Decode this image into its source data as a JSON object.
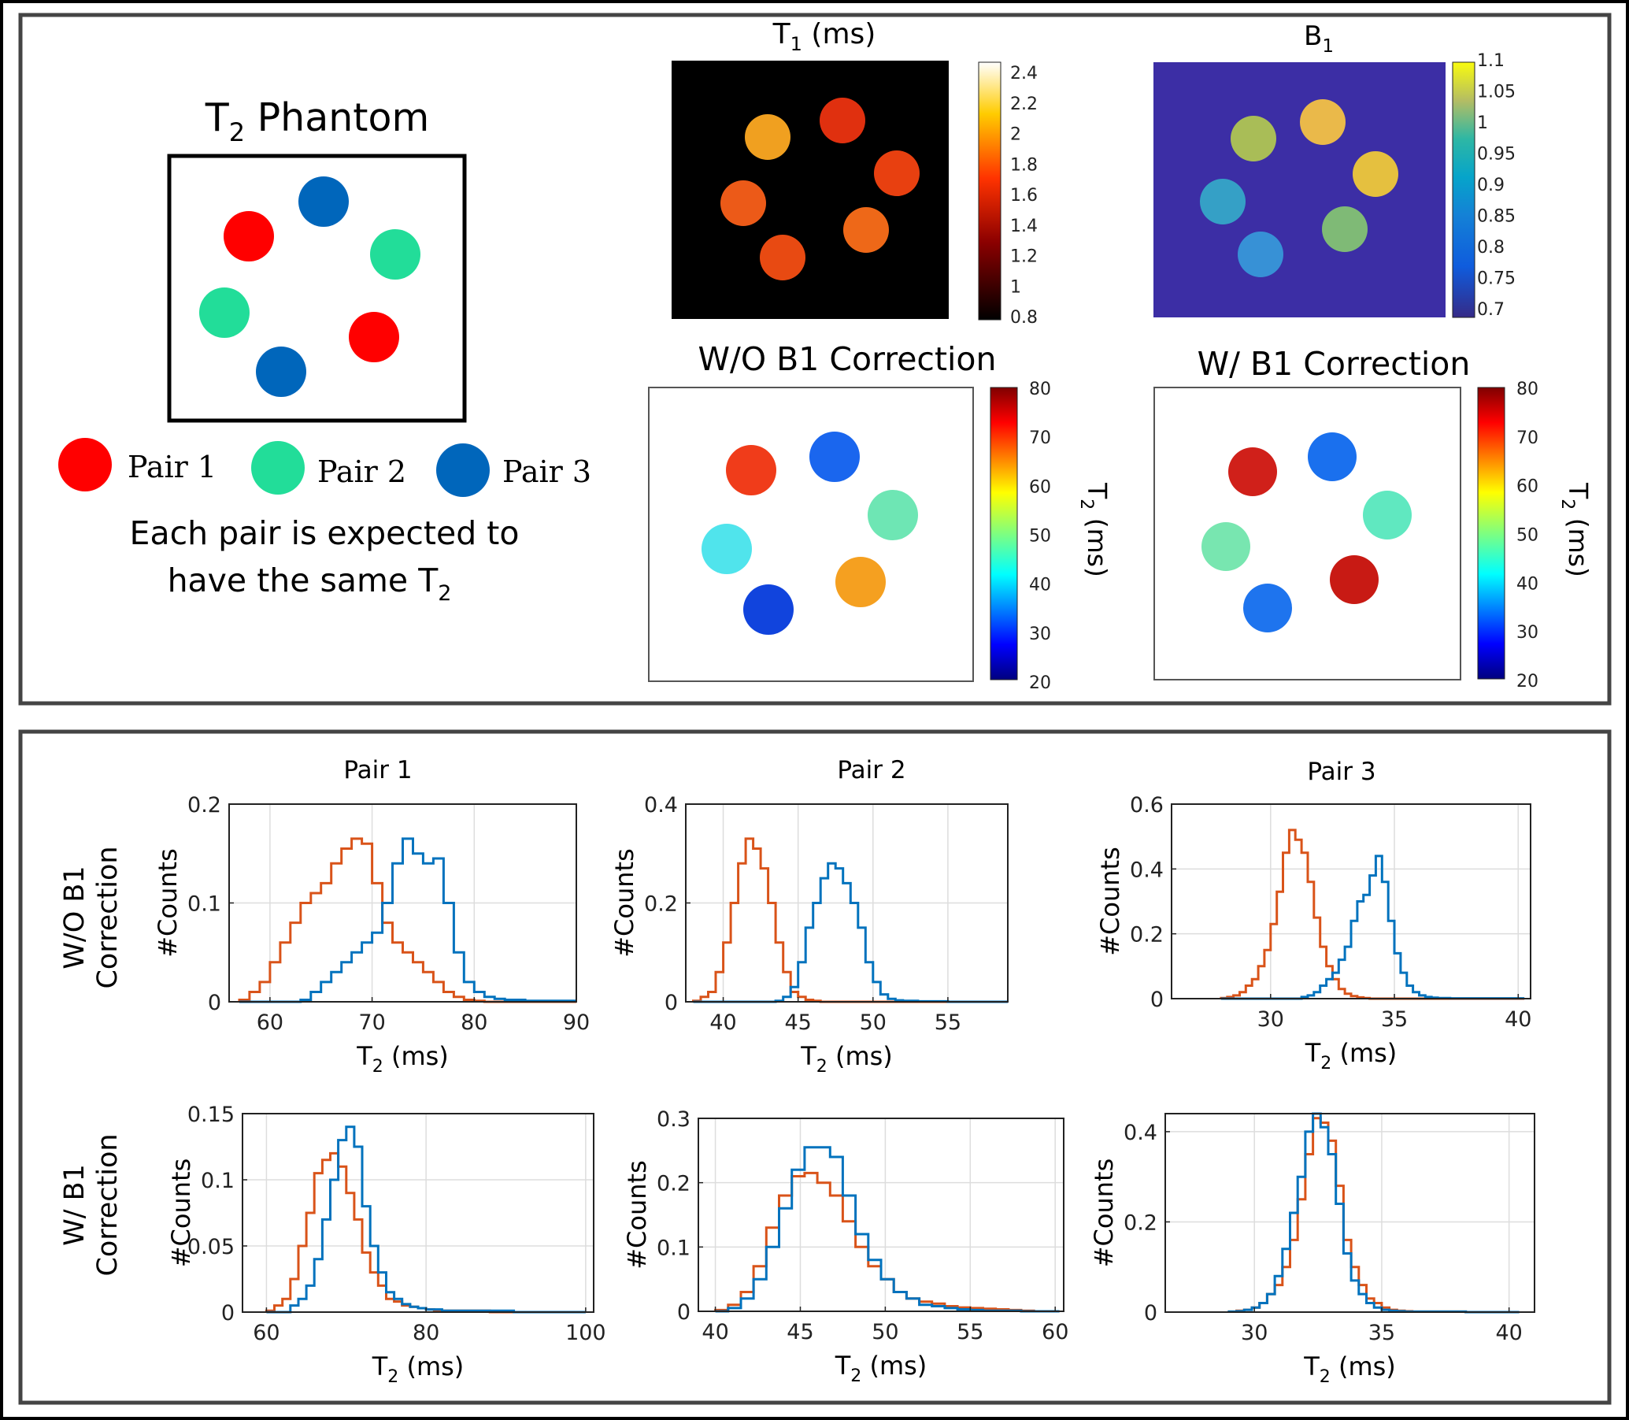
{
  "colors": {
    "pair1": "#ff0000",
    "pair2": "#22dd99",
    "pair3": "#0066bb",
    "series_a": "#d95319",
    "series_b": "#0072bd",
    "frame": "#444444"
  },
  "legend_panel": {
    "title_main": "T",
    "title_sub": "2",
    "title_rest": " Phantom",
    "pairs": [
      "Pair 1",
      "Pair 2",
      "Pair 3"
    ],
    "caption_line1": "Each pair is expected to",
    "caption_line2_main": "have the same T",
    "caption_line2_sub": "2"
  },
  "maps": {
    "t1": {
      "title_main": "T",
      "title_sub": "1",
      "title_rest": " (ms)",
      "colorbar_ticks": [
        "2.4",
        "2.2",
        "2",
        "1.8",
        "1.6",
        "1.4",
        "1.2",
        "1",
        "0.8"
      ]
    },
    "b1": {
      "title": "B",
      "title_sub": "1",
      "colorbar_ticks": [
        "1.1",
        "1.05",
        "1",
        "0.95",
        "0.9",
        "0.85",
        "0.8",
        "0.75",
        "0.7"
      ]
    },
    "t2_without": {
      "title": "W/O B1  Correction",
      "colorbar_ticks": [
        "80",
        "70",
        "60",
        "50",
        "40",
        "30",
        "20"
      ],
      "colorbar_label_main": "T",
      "colorbar_label_sub": "2",
      "colorbar_label_rest": " (ms)"
    },
    "t2_with": {
      "title": "W/ B1  Correction",
      "colorbar_ticks": [
        "80",
        "70",
        "60",
        "50",
        "40",
        "30",
        "20"
      ],
      "colorbar_label_main": "T",
      "colorbar_label_sub": "2",
      "colorbar_label_rest": " (ms)"
    }
  },
  "histograms": {
    "column_titles": [
      "Pair 1",
      "Pair 2",
      "Pair 3"
    ],
    "row_labels": [
      [
        "W/O B1",
        "Correction"
      ],
      [
        "W/ B1",
        "Correction"
      ]
    ],
    "ylabel": "#Counts",
    "xlabel_main": "T",
    "xlabel_sub": "2",
    "xlabel_rest": " (ms)"
  },
  "chart_data": [
    {
      "type": "histogram",
      "title": "Pair 1",
      "row": "W/O B1 Correction",
      "xlim": [
        56,
        90
      ],
      "ylim": [
        0,
        0.2
      ],
      "xticks": [
        60,
        70,
        80,
        90
      ],
      "yticks": [
        0,
        0.1,
        0.2
      ],
      "xlabel": "T2 (ms)",
      "ylabel": "#Counts",
      "series": [
        {
          "name": "red",
          "bin_start": 57,
          "bin_width": 1,
          "values": [
            0.002,
            0.01,
            0.02,
            0.04,
            0.06,
            0.08,
            0.1,
            0.11,
            0.12,
            0.14,
            0.155,
            0.165,
            0.16,
            0.12,
            0.08,
            0.06,
            0.05,
            0.04,
            0.03,
            0.02,
            0.01,
            0.005,
            0.002,
            0.001,
            0,
            0,
            0,
            0,
            0,
            0,
            0,
            0,
            0
          ]
        },
        {
          "name": "blue",
          "bin_start": 57,
          "bin_width": 1,
          "values": [
            0,
            0,
            0,
            0,
            0,
            0,
            0.002,
            0.01,
            0.02,
            0.03,
            0.04,
            0.05,
            0.06,
            0.07,
            0.1,
            0.14,
            0.165,
            0.15,
            0.14,
            0.145,
            0.1,
            0.05,
            0.02,
            0.01,
            0.005,
            0.003,
            0.002,
            0.002,
            0.001,
            0.001,
            0.001,
            0.001,
            0.001
          ]
        }
      ]
    },
    {
      "type": "histogram",
      "title": "Pair 2",
      "row": "W/O B1 Correction",
      "xlim": [
        37.5,
        59
      ],
      "ylim": [
        0,
        0.4
      ],
      "xticks": [
        40,
        45,
        50,
        55
      ],
      "yticks": [
        0,
        0.2,
        0.4
      ],
      "xlabel": "T2 (ms)",
      "ylabel": "#Counts",
      "series": [
        {
          "name": "red",
          "bin_start": 38,
          "bin_width": 0.5,
          "values": [
            0.002,
            0.01,
            0.02,
            0.06,
            0.12,
            0.2,
            0.28,
            0.33,
            0.31,
            0.27,
            0.2,
            0.12,
            0.06,
            0.02,
            0.01,
            0.004,
            0.002,
            0,
            0,
            0,
            0,
            0,
            0,
            0,
            0,
            0,
            0,
            0,
            0,
            0,
            0,
            0,
            0,
            0,
            0,
            0,
            0,
            0,
            0,
            0,
            0,
            0
          ]
        },
        {
          "name": "blue",
          "bin_start": 38,
          "bin_width": 0.5,
          "values": [
            0,
            0,
            0,
            0,
            0,
            0,
            0,
            0,
            0,
            0,
            0,
            0.002,
            0.01,
            0.03,
            0.08,
            0.15,
            0.2,
            0.25,
            0.28,
            0.27,
            0.24,
            0.2,
            0.15,
            0.08,
            0.04,
            0.015,
            0.006,
            0.003,
            0.002,
            0.002,
            0.001,
            0.001,
            0.001,
            0.001,
            0,
            0,
            0,
            0,
            0,
            0,
            0,
            0
          ]
        }
      ]
    },
    {
      "type": "histogram",
      "title": "Pair 3",
      "row": "W/O B1 Correction",
      "xlim": [
        26,
        40.5
      ],
      "ylim": [
        0,
        0.6
      ],
      "xticks": [
        30,
        35,
        40
      ],
      "yticks": [
        0,
        0.2,
        0.4,
        0.6
      ],
      "xlabel": "T2 (ms)",
      "ylabel": "#Counts",
      "series": [
        {
          "name": "red",
          "bin_start": 28,
          "bin_width": 0.25,
          "values": [
            0.002,
            0.005,
            0.01,
            0.02,
            0.04,
            0.06,
            0.1,
            0.15,
            0.23,
            0.33,
            0.45,
            0.52,
            0.49,
            0.45,
            0.36,
            0.25,
            0.16,
            0.1,
            0.06,
            0.03,
            0.015,
            0.008,
            0.004,
            0.002,
            0,
            0,
            0,
            0,
            0,
            0,
            0,
            0,
            0,
            0,
            0,
            0,
            0,
            0,
            0,
            0,
            0,
            0,
            0,
            0,
            0,
            0,
            0,
            0,
            0
          ]
        },
        {
          "name": "blue",
          "bin_start": 28,
          "bin_width": 0.25,
          "values": [
            0,
            0,
            0,
            0,
            0,
            0,
            0,
            0,
            0,
            0,
            0,
            0,
            0,
            0.005,
            0.01,
            0.02,
            0.04,
            0.06,
            0.08,
            0.12,
            0.16,
            0.24,
            0.3,
            0.32,
            0.38,
            0.44,
            0.36,
            0.24,
            0.14,
            0.08,
            0.04,
            0.02,
            0.01,
            0.005,
            0.003,
            0.002,
            0.002,
            0.001,
            0.001,
            0.001,
            0.001,
            0.001,
            0.001,
            0.001,
            0.001,
            0.001,
            0.001,
            0.001,
            0.001
          ]
        }
      ]
    },
    {
      "type": "histogram",
      "title": "Pair 1",
      "row": "W/ B1 Correction",
      "xlim": [
        57,
        101
      ],
      "ylim": [
        0,
        0.15
      ],
      "xticks": [
        60,
        80,
        100
      ],
      "yticks": [
        0,
        0.05,
        0.1,
        0.15
      ],
      "xlabel": "T2 (ms)",
      "ylabel": "#Counts",
      "series": [
        {
          "name": "red",
          "bin_start": 60,
          "bin_width": 1,
          "values": [
            0.001,
            0.005,
            0.01,
            0.025,
            0.05,
            0.075,
            0.105,
            0.115,
            0.12,
            0.11,
            0.09,
            0.07,
            0.045,
            0.03,
            0.02,
            0.01,
            0.008,
            0.005,
            0.004,
            0.003,
            0.002,
            0.001,
            0.001,
            0.001,
            0.001,
            0.001,
            0.001,
            0.001,
            0,
            0,
            0,
            0,
            0,
            0,
            0,
            0,
            0,
            0,
            0,
            0
          ]
        },
        {
          "name": "blue",
          "bin_start": 60,
          "bin_width": 1,
          "values": [
            0,
            0,
            0,
            0.005,
            0.01,
            0.02,
            0.04,
            0.07,
            0.1,
            0.13,
            0.14,
            0.125,
            0.08,
            0.05,
            0.03,
            0.015,
            0.01,
            0.006,
            0.004,
            0.003,
            0.002,
            0.002,
            0.001,
            0.001,
            0.001,
            0.001,
            0.001,
            0.001,
            0.001,
            0.001,
            0.001,
            0,
            0,
            0,
            0,
            0,
            0,
            0,
            0,
            0
          ]
        }
      ]
    },
    {
      "type": "histogram",
      "title": "Pair 2",
      "row": "W/ B1 Correction",
      "xlim": [
        39,
        60.5
      ],
      "ylim": [
        0,
        0.3
      ],
      "xticks": [
        40,
        45,
        50,
        55,
        60
      ],
      "yticks": [
        0,
        0.1,
        0.2,
        0.3
      ],
      "xlabel": "T2 (ms)",
      "ylabel": "#Counts",
      "series": [
        {
          "name": "red",
          "bin_start": 40,
          "bin_width": 0.75,
          "values": [
            0.002,
            0.01,
            0.03,
            0.07,
            0.13,
            0.18,
            0.21,
            0.215,
            0.2,
            0.18,
            0.14,
            0.1,
            0.07,
            0.05,
            0.03,
            0.02,
            0.015,
            0.012,
            0.008,
            0.006,
            0.005,
            0.004,
            0.003,
            0.002,
            0.001,
            0,
            0,
            0
          ]
        },
        {
          "name": "blue",
          "bin_start": 40,
          "bin_width": 0.75,
          "values": [
            0,
            0.005,
            0.02,
            0.05,
            0.1,
            0.16,
            0.22,
            0.255,
            0.255,
            0.24,
            0.18,
            0.12,
            0.08,
            0.05,
            0.03,
            0.02,
            0.01,
            0.008,
            0.005,
            0.003,
            0.002,
            0.001,
            0.001,
            0.001,
            0,
            0,
            0,
            0
          ]
        }
      ]
    },
    {
      "type": "histogram",
      "title": "Pair 3",
      "row": "W/ B1 Correction",
      "xlim": [
        26.5,
        41
      ],
      "ylim": [
        0,
        0.44
      ],
      "xticks": [
        30,
        35,
        40
      ],
      "yticks": [
        0,
        0.2,
        0.4
      ],
      "xlabel": "T2 (ms)",
      "ylabel": "#Counts",
      "series": [
        {
          "name": "red",
          "bin_start": 29,
          "bin_width": 0.3,
          "values": [
            0.001,
            0.003,
            0.005,
            0.01,
            0.02,
            0.04,
            0.06,
            0.1,
            0.16,
            0.25,
            0.35,
            0.43,
            0.42,
            0.38,
            0.28,
            0.16,
            0.1,
            0.06,
            0.03,
            0.02,
            0.01,
            0.005,
            0.003,
            0.002,
            0.001,
            0.001,
            0.001,
            0.001,
            0.001,
            0.001,
            0.001,
            0,
            0,
            0,
            0,
            0,
            0,
            0
          ]
        },
        {
          "name": "blue",
          "bin_start": 29,
          "bin_width": 0.3,
          "values": [
            0.001,
            0.002,
            0.005,
            0.01,
            0.02,
            0.04,
            0.08,
            0.14,
            0.22,
            0.3,
            0.4,
            0.44,
            0.41,
            0.35,
            0.24,
            0.13,
            0.07,
            0.04,
            0.02,
            0.01,
            0.005,
            0.003,
            0.002,
            0.001,
            0.001,
            0.001,
            0.001,
            0.001,
            0.001,
            0.001,
            0.001,
            0,
            0,
            0,
            0,
            0,
            0,
            0
          ]
        }
      ]
    }
  ]
}
